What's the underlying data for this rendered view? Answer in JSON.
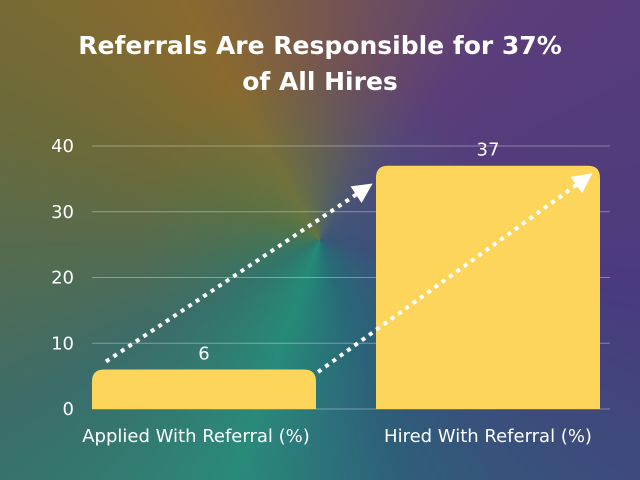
{
  "title_line1": "Referrals Are Responsible for 37%",
  "title_line2": "of All Hires",
  "colors": {
    "bar": "#fdd55a",
    "grid": "rgba(255,255,255,0.35)",
    "text": "#ffffff",
    "arrow": "#ffffff"
  },
  "chart_data": {
    "type": "bar",
    "title": "Referrals Are Responsible for 37% of All Hires",
    "categories": [
      "Applied With Referral (%)",
      "Hired With Referral (%)"
    ],
    "values": [
      6,
      37
    ],
    "data_labels": [
      "6",
      "37"
    ],
    "y_ticks": [
      "0",
      "10",
      "20",
      "30",
      "40"
    ],
    "ylim": [
      0,
      40
    ],
    "grid": true,
    "xlabel": "",
    "ylabel": ""
  }
}
